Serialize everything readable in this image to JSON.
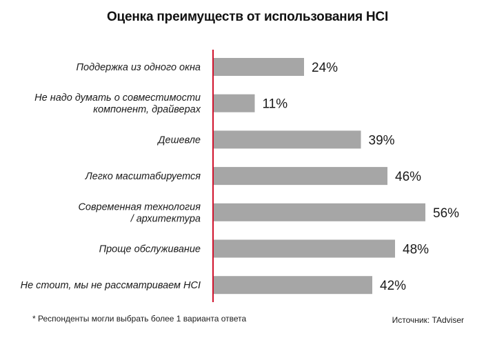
{
  "chart_data": {
    "type": "bar",
    "orientation": "horizontal",
    "title": "Оценка преимуществ от использования HCI",
    "categories": [
      [
        "Поддержка из одного окна"
      ],
      [
        "Не надо думать о совместимости",
        "компонент, драйверах"
      ],
      [
        "Дешевле"
      ],
      [
        "Легко масштабируется"
      ],
      [
        "Современная технология",
        "/ архитектура"
      ],
      [
        "Проще обслуживание"
      ],
      [
        "Не стоит, мы не рассматриваем HCI"
      ]
    ],
    "values": [
      24,
      11,
      39,
      46,
      56,
      48,
      42
    ],
    "value_labels": [
      "24%",
      "11%",
      "39%",
      "46%",
      "56%",
      "48%",
      "42%"
    ],
    "unit": "%",
    "xlim": [
      0,
      56
    ],
    "grid": false,
    "legend": "none",
    "bar_color": "#a6a6a6",
    "axis_color": "#d0112b"
  },
  "footnote": "* Респонденты могли выбрать более 1 варианта ответа",
  "source": "Источник: TAdviser"
}
